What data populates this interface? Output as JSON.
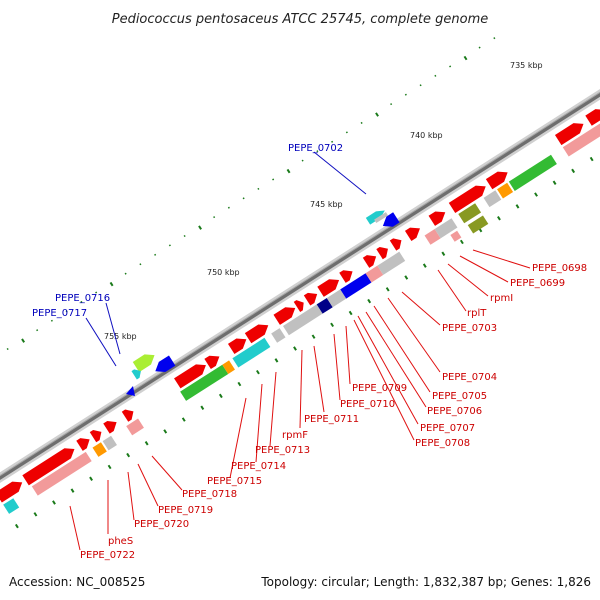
{
  "title": "Pediococcus pentosaceus ATCC 25745, complete genome",
  "footer": {
    "accession": "Accession: NC_008525",
    "stats": "Topology: circular; Length: 1,832,387 bp; Genes: 1,826"
  },
  "scale_labels": [
    {
      "label": "735 kbp",
      "kbp": 735
    },
    {
      "label": "740 kbp",
      "kbp": 740
    },
    {
      "label": "745 kbp",
      "kbp": 745
    },
    {
      "label": "750 kbp",
      "kbp": 750
    },
    {
      "label": "755 kbp",
      "kbp": 755
    }
  ],
  "colors": {
    "forward_gene": "#ee0000",
    "forward_gene_light": "#f29a9a",
    "reverse_label": "#0000bb",
    "backbone": "#777777",
    "tick": "#1a7a1a",
    "cog_green": "#33bb33",
    "cog_orange": "#ff9900",
    "cog_cyan": "#22cccc",
    "cog_blue": "#0000ee",
    "cog_navy": "#000088",
    "cog_olive": "#889922",
    "cog_magenta": "#ff2299",
    "cog_lime": "#aaee33",
    "cog_gray": "#c0c0c0"
  },
  "gene_labels": [
    {
      "name": "PEPE_0698",
      "strand": "forward"
    },
    {
      "name": "PEPE_0699",
      "strand": "forward"
    },
    {
      "name": "rpmI",
      "strand": "forward"
    },
    {
      "name": "rplT",
      "strand": "forward"
    },
    {
      "name": "PEPE_0702",
      "strand": "reverse"
    },
    {
      "name": "PEPE_0703",
      "strand": "forward"
    },
    {
      "name": "PEPE_0704",
      "strand": "forward"
    },
    {
      "name": "PEPE_0705",
      "strand": "forward"
    },
    {
      "name": "PEPE_0706",
      "strand": "forward"
    },
    {
      "name": "PEPE_0707",
      "strand": "forward"
    },
    {
      "name": "PEPE_0708",
      "strand": "forward"
    },
    {
      "name": "PEPE_0709",
      "strand": "forward"
    },
    {
      "name": "PEPE_0710",
      "strand": "forward"
    },
    {
      "name": "PEPE_0711",
      "strand": "forward"
    },
    {
      "name": "rpmF",
      "strand": "forward"
    },
    {
      "name": "PEPE_0713",
      "strand": "forward"
    },
    {
      "name": "PEPE_0714",
      "strand": "forward"
    },
    {
      "name": "PEPE_0715",
      "strand": "forward"
    },
    {
      "name": "PEPE_0716",
      "strand": "reverse"
    },
    {
      "name": "PEPE_0717",
      "strand": "reverse"
    },
    {
      "name": "PEPE_0718",
      "strand": "forward"
    },
    {
      "name": "PEPE_0719",
      "strand": "forward"
    },
    {
      "name": "PEPE_0720",
      "strand": "forward"
    },
    {
      "name": "pheS",
      "strand": "forward"
    },
    {
      "name": "PEPE_0722",
      "strand": "forward"
    }
  ]
}
